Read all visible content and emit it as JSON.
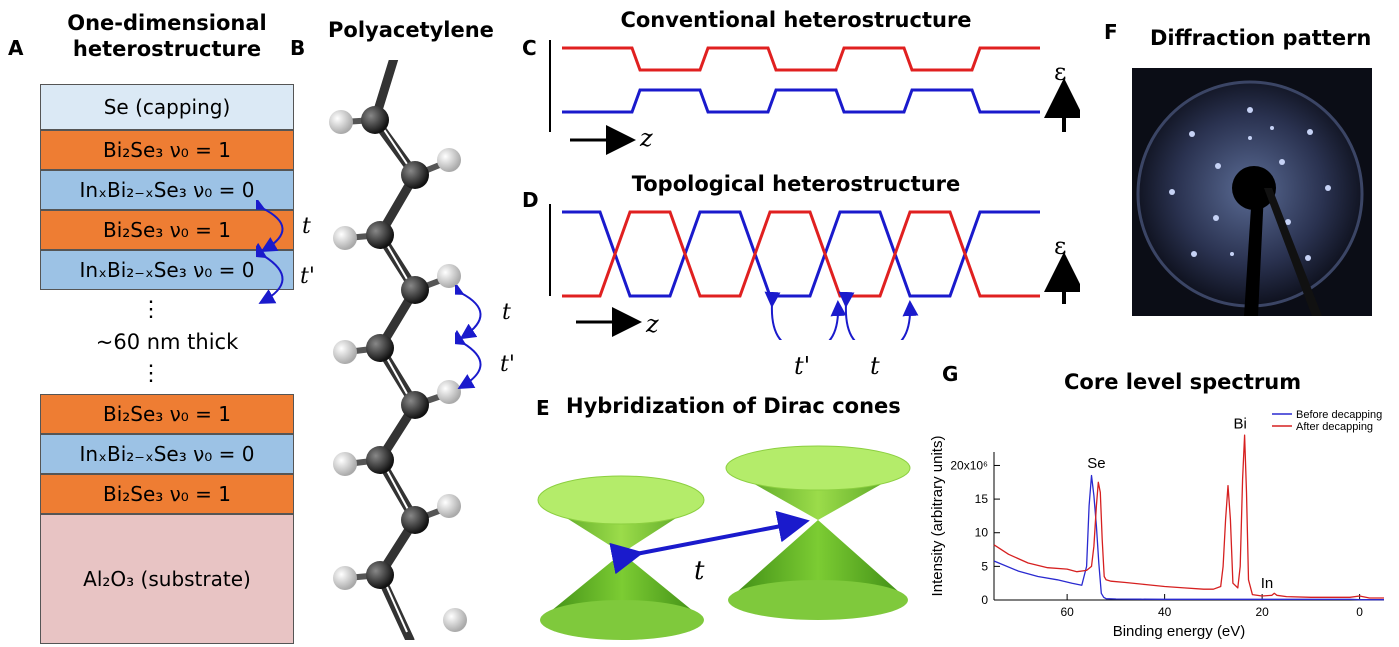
{
  "panel_a": {
    "label": "A",
    "title_line1": "One-dimensional",
    "title_line2": "heterostructure",
    "layers": {
      "capping": "Se (capping)",
      "bise": "Bi₂Se₃ ν₀ = 1",
      "inbise": "InₓBi₂₋ₓSe₃ ν₀ = 0",
      "substrate": "Al₂O₃ (substrate)"
    },
    "dots": "⋮",
    "thickness": "~60 nm thick",
    "hop_t": "t",
    "hop_tp": "t'"
  },
  "panel_b": {
    "label": "B",
    "title": "Polyacetylene",
    "hop_t": "t",
    "hop_tp": "t'"
  },
  "panel_c": {
    "label": "C",
    "title": "Conventional heterostructure",
    "z_label": "z",
    "e_label": "ε"
  },
  "panel_d": {
    "label": "D",
    "title": "Topological heterostructure",
    "z_label": "z",
    "e_label": "ε",
    "hop_tp": "t'",
    "hop_t": "t"
  },
  "panel_e": {
    "label": "E",
    "title": "Hybridization of Dirac cones",
    "hop_t": "t"
  },
  "panel_f": {
    "label": "F",
    "title": "Diffraction pattern"
  },
  "panel_g": {
    "label": "G",
    "title": "Core level spectrum"
  },
  "colors": {
    "orange": "#ee7d33",
    "lightblue": "#9cc2e5",
    "red": "#e02020",
    "blue": "#1a1acc",
    "green": "#6fbf2a"
  },
  "chart_data": {
    "type": "line",
    "title": "Core level spectrum",
    "xlabel": "Binding energy (eV)",
    "ylabel": "Intensity (arbitrary units)",
    "xlim": [
      75,
      -5
    ],
    "ylim": [
      0,
      22
    ],
    "x_ticks": [
      60,
      40,
      20,
      0
    ],
    "y_ticks": [
      0,
      5,
      10,
      15,
      20
    ],
    "y_tick_labels": [
      "0",
      "5",
      "10",
      "15",
      "20x10⁶"
    ],
    "annotations": [
      "Se",
      "Bi",
      "In"
    ],
    "legend_position": "top-right",
    "series": [
      {
        "name": "Before decapping",
        "color": "#2a2ad0",
        "x": [
          75,
          70,
          66,
          62,
          59,
          57,
          56,
          55.5,
          55,
          54.5,
          54,
          53.5,
          53,
          52.5,
          52,
          50,
          45,
          40,
          35,
          30,
          27,
          25,
          22,
          20,
          15,
          10,
          5,
          2,
          0,
          -5
        ],
        "y": [
          5.8,
          4.3,
          3.5,
          3.0,
          2.5,
          2.2,
          5.0,
          14.0,
          18.5,
          15.5,
          11.0,
          5.5,
          1.0,
          0.4,
          0.2,
          0.15,
          0.12,
          0.1,
          0.1,
          0.1,
          0.1,
          0.1,
          0.1,
          0.1,
          0.1,
          0.1,
          0.1,
          0.1,
          0.05,
          0.05
        ]
      },
      {
        "name": "After decapping",
        "color": "#d62020",
        "x": [
          75,
          72,
          68,
          64,
          60,
          58,
          56,
          55,
          54.5,
          54,
          53.6,
          53.2,
          52.8,
          52.4,
          52,
          51,
          48,
          44,
          40,
          36,
          32,
          30,
          28.5,
          28,
          27.5,
          27,
          26.5,
          26,
          25,
          24.5,
          24,
          23.6,
          23.2,
          22.8,
          22,
          20,
          18,
          17.5,
          17,
          15,
          10,
          5,
          2,
          0,
          -2,
          -5
        ],
        "y": [
          8.2,
          6.8,
          5.5,
          4.8,
          4.6,
          4.2,
          4.4,
          5.0,
          8.0,
          14.0,
          17.5,
          16.0,
          9.0,
          3.5,
          3.0,
          2.8,
          2.6,
          2.3,
          2.0,
          1.8,
          1.6,
          1.6,
          2.0,
          5.0,
          12.0,
          17.0,
          12.0,
          2.5,
          1.8,
          5.0,
          18.0,
          24.5,
          16.0,
          3.0,
          0.8,
          0.6,
          0.7,
          1.0,
          0.7,
          0.5,
          0.4,
          0.4,
          0.4,
          0.6,
          0.3,
          0.3
        ]
      }
    ]
  }
}
